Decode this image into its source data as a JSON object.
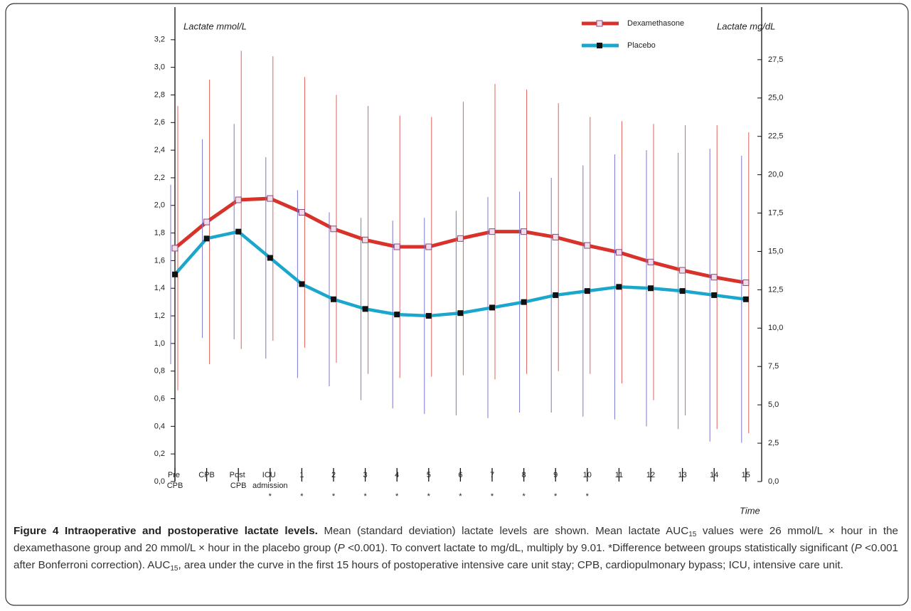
{
  "chart_data": {
    "type": "line",
    "ylabel": "Lactate mmol/L",
    "y2label": "Lactate mg/dL",
    "xlabel": "Time",
    "categories": [
      "Pre CPB",
      "CPB",
      "Post CPB",
      "ICU admission",
      "1",
      "2",
      "3",
      "4",
      "5",
      "6",
      "7",
      "8",
      "9",
      "10",
      "11",
      "12",
      "13",
      "14",
      "15"
    ],
    "significance": [
      null,
      null,
      null,
      "*",
      "*",
      "*",
      "*",
      "*",
      "*",
      "*",
      "*",
      "*",
      "*",
      "*",
      null,
      null,
      null,
      null,
      null
    ],
    "series": [
      {
        "name": "Dexamethasone",
        "color": "#d9322a",
        "error_color": "#e0605a",
        "marker_fill": "#f2dcea",
        "marker_stroke": "#8a4a7a",
        "values": [
          1.69,
          1.88,
          2.04,
          2.05,
          1.95,
          1.83,
          1.75,
          1.7,
          1.7,
          1.76,
          1.81,
          1.81,
          1.77,
          1.71,
          1.66,
          1.59,
          1.53,
          1.48,
          1.44
        ],
        "errors": [
          1.03,
          1.03,
          1.08,
          1.03,
          0.98,
          0.97,
          0.97,
          0.95,
          0.94,
          0.99,
          1.07,
          1.03,
          0.97,
          0.93,
          0.95,
          1.0,
          1.05,
          1.1,
          1.09
        ]
      },
      {
        "name": "Placebo",
        "color": "#1ba6cc",
        "error_color": "#7a78cc",
        "marker_fill": "#111111",
        "marker_stroke": "#111111",
        "values": [
          1.5,
          1.76,
          1.81,
          1.62,
          1.43,
          1.32,
          1.25,
          1.21,
          1.2,
          1.22,
          1.26,
          1.3,
          1.35,
          1.38,
          1.41,
          1.4,
          1.38,
          1.35,
          1.32
        ],
        "errors": [
          0.65,
          0.72,
          0.78,
          0.73,
          0.68,
          0.63,
          0.66,
          0.68,
          0.71,
          0.74,
          0.8,
          0.8,
          0.85,
          0.91,
          0.96,
          1.0,
          1.0,
          1.06,
          1.04
        ]
      }
    ],
    "ylim": [
      0,
      3.4
    ],
    "yticks": [
      {
        "value": 0,
        "label": "0,0"
      },
      {
        "value": 0.2,
        "label": "0,2"
      },
      {
        "value": 0.4,
        "label": "0,4"
      },
      {
        "value": 0.6,
        "label": "0,6"
      },
      {
        "value": 0.8,
        "label": "0,8"
      },
      {
        "value": 1.0,
        "label": "1,0"
      },
      {
        "value": 1.2,
        "label": "1,2"
      },
      {
        "value": 1.4,
        "label": "1,4"
      },
      {
        "value": 1.6,
        "label": "1,6"
      },
      {
        "value": 1.8,
        "label": "1,8"
      },
      {
        "value": 2.0,
        "label": "2,0"
      },
      {
        "value": 2.2,
        "label": "2,2"
      },
      {
        "value": 2.4,
        "label": "2,4"
      },
      {
        "value": 2.6,
        "label": "2,6"
      },
      {
        "value": 2.8,
        "label": "2,8"
      },
      {
        "value": 3.0,
        "label": "3,0"
      },
      {
        "value": 3.2,
        "label": "3,2"
      }
    ],
    "y2lim": [
      0,
      30.6
    ],
    "y2ticks": [
      {
        "value": 0,
        "label": "0,0"
      },
      {
        "value": 2.5,
        "label": "2,5"
      },
      {
        "value": 5,
        "label": "5,0"
      },
      {
        "value": 7.5,
        "label": "7,5"
      },
      {
        "value": 10,
        "label": "10,0"
      },
      {
        "value": 12.5,
        "label": "12,5"
      },
      {
        "value": 15,
        "label": "15,0"
      },
      {
        "value": 17.5,
        "label": "17,5"
      },
      {
        "value": 20,
        "label": "20,0"
      },
      {
        "value": 22.5,
        "label": "22,5"
      },
      {
        "value": 25,
        "label": "25,0"
      },
      {
        "value": 27.5,
        "label": "27,5"
      }
    ],
    "grid": false,
    "legend": "top"
  },
  "caption": {
    "parts": [
      {
        "text": "Figure 4 Intraoperative and postoperative lactate levels.",
        "style": "bold"
      },
      {
        "text": " Mean (standard deviation) lactate levels are shown. Mean lactate AUC",
        "style": "normal"
      },
      {
        "text": "15",
        "style": "sub"
      },
      {
        "text": " values were 26 mmol/L × hour in the dexamethasone group and 20 mmol/L × hour in the placebo group (",
        "style": "normal"
      },
      {
        "text": "P",
        "style": "italic"
      },
      {
        "text": " <0.001). To convert lactate to mg/dL, multiply by 9.01. *Difference between groups statistically significant (",
        "style": "normal"
      },
      {
        "text": "P",
        "style": "italic"
      },
      {
        "text": " <0.001 after Bonferroni correction). AUC",
        "style": "normal"
      },
      {
        "text": "15",
        "style": "sub"
      },
      {
        "text": ", area under the curve in the first 15 hours of postoperative intensive care unit stay; CPB, cardiopulmonary bypass; ICU, intensive care unit.",
        "style": "normal"
      }
    ]
  }
}
